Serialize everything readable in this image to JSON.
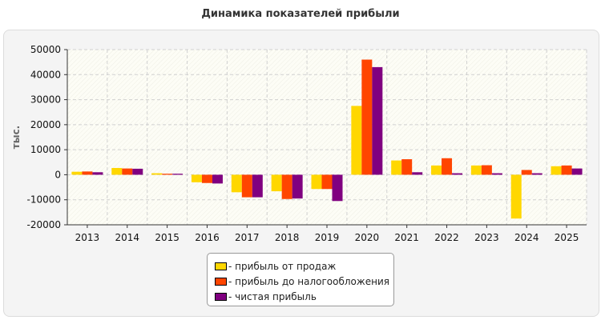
{
  "chart_data": {
    "type": "bar",
    "title": "Динамика показателей прибыли",
    "ylabel": "тыс.",
    "xlabel": "",
    "categories": [
      "2013",
      "2014",
      "2015",
      "2016",
      "2017",
      "2018",
      "2019",
      "2020",
      "2021",
      "2022",
      "2023",
      "2024",
      "2025"
    ],
    "series": [
      {
        "name": "- прибыль от продаж",
        "color": "#ffd700",
        "values": [
          1200,
          2700,
          600,
          -3000,
          -7000,
          -6600,
          -5700,
          27500,
          5700,
          3700,
          3700,
          -17500,
          3400
        ]
      },
      {
        "name": "- прибыль до налогообложения",
        "color": "#ff4500",
        "values": [
          1300,
          2500,
          400,
          -3300,
          -9000,
          -9700,
          -5700,
          46000,
          6200,
          6600,
          3800,
          1900,
          3700
        ]
      },
      {
        "name": "- чистая прибыль",
        "color": "#800080",
        "values": [
          1000,
          2400,
          400,
          -3500,
          -9000,
          -9500,
          -10500,
          43000,
          1000,
          600,
          600,
          600,
          2500
        ]
      }
    ],
    "ylim": [
      -20000,
      50000
    ],
    "yticks": [
      -20000,
      -10000,
      0,
      10000,
      20000,
      30000,
      40000,
      50000
    ],
    "grid": true,
    "legend_position": "bottom-center"
  }
}
